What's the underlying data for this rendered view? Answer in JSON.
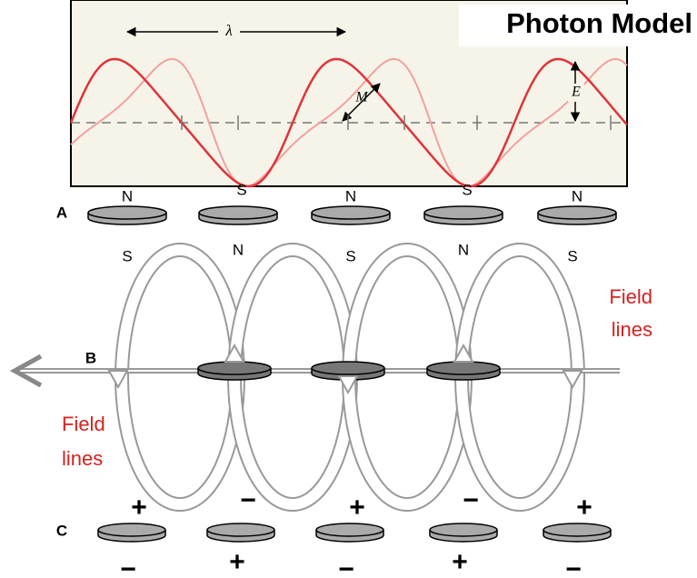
{
  "title": "Photon Model",
  "wave": {
    "wavelength": "λ",
    "amplitude_m": "M",
    "amplitude_e": "E"
  },
  "row_a": {
    "label": "A",
    "poles": [
      "N",
      "S",
      "N",
      "S",
      "N"
    ]
  },
  "row_b": {
    "label": "B",
    "poles": [
      "S",
      "N",
      "S",
      "N",
      "S"
    ],
    "field_lines_right": [
      "Field",
      "lines"
    ],
    "field_lines_left": [
      "Field",
      "lines"
    ]
  },
  "row_c": {
    "label": "C",
    "top": [
      "+",
      "−",
      "+",
      "−",
      "+"
    ],
    "bottom": [
      "−",
      "+",
      "−",
      "+",
      "−"
    ]
  }
}
